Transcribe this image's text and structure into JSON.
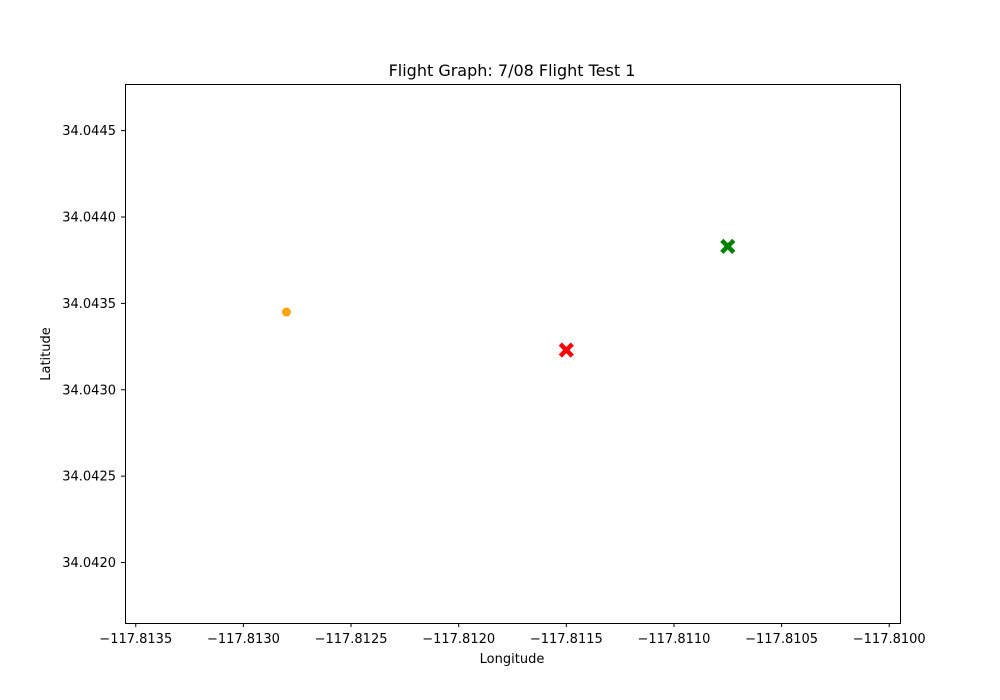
{
  "chart_data": {
    "type": "scatter",
    "title": "Flight Graph: 7/08 Flight Test 1",
    "xlabel": "Longitude",
    "ylabel": "Latitude",
    "xlim": [
      -117.81355,
      -117.80995
    ],
    "ylim": [
      34.04165,
      34.04477
    ],
    "xticks": [
      -117.8135,
      -117.813,
      -117.8125,
      -117.812,
      -117.8115,
      -117.811,
      -117.8105,
      -117.81
    ],
    "xtick_labels": [
      "−117.8135",
      "−117.8130",
      "−117.8125",
      "−117.8120",
      "−117.8115",
      "−117.8110",
      "−117.8105",
      "−117.8100"
    ],
    "yticks": [
      34.042,
      34.0425,
      34.043,
      34.0435,
      34.044,
      34.0445
    ],
    "ytick_labels": [
      "34.0420",
      "34.0425",
      "34.0430",
      "34.0435",
      "34.0440",
      "34.0445"
    ],
    "grid": false,
    "points": [
      {
        "x": -117.8128,
        "y": 34.04345,
        "marker": "circle",
        "color": "#ffa500"
      },
      {
        "x": -117.8115,
        "y": 34.04323,
        "marker": "x",
        "color": "#ff0000"
      },
      {
        "x": -117.81075,
        "y": 34.04383,
        "marker": "x",
        "color": "#008000"
      }
    ]
  }
}
